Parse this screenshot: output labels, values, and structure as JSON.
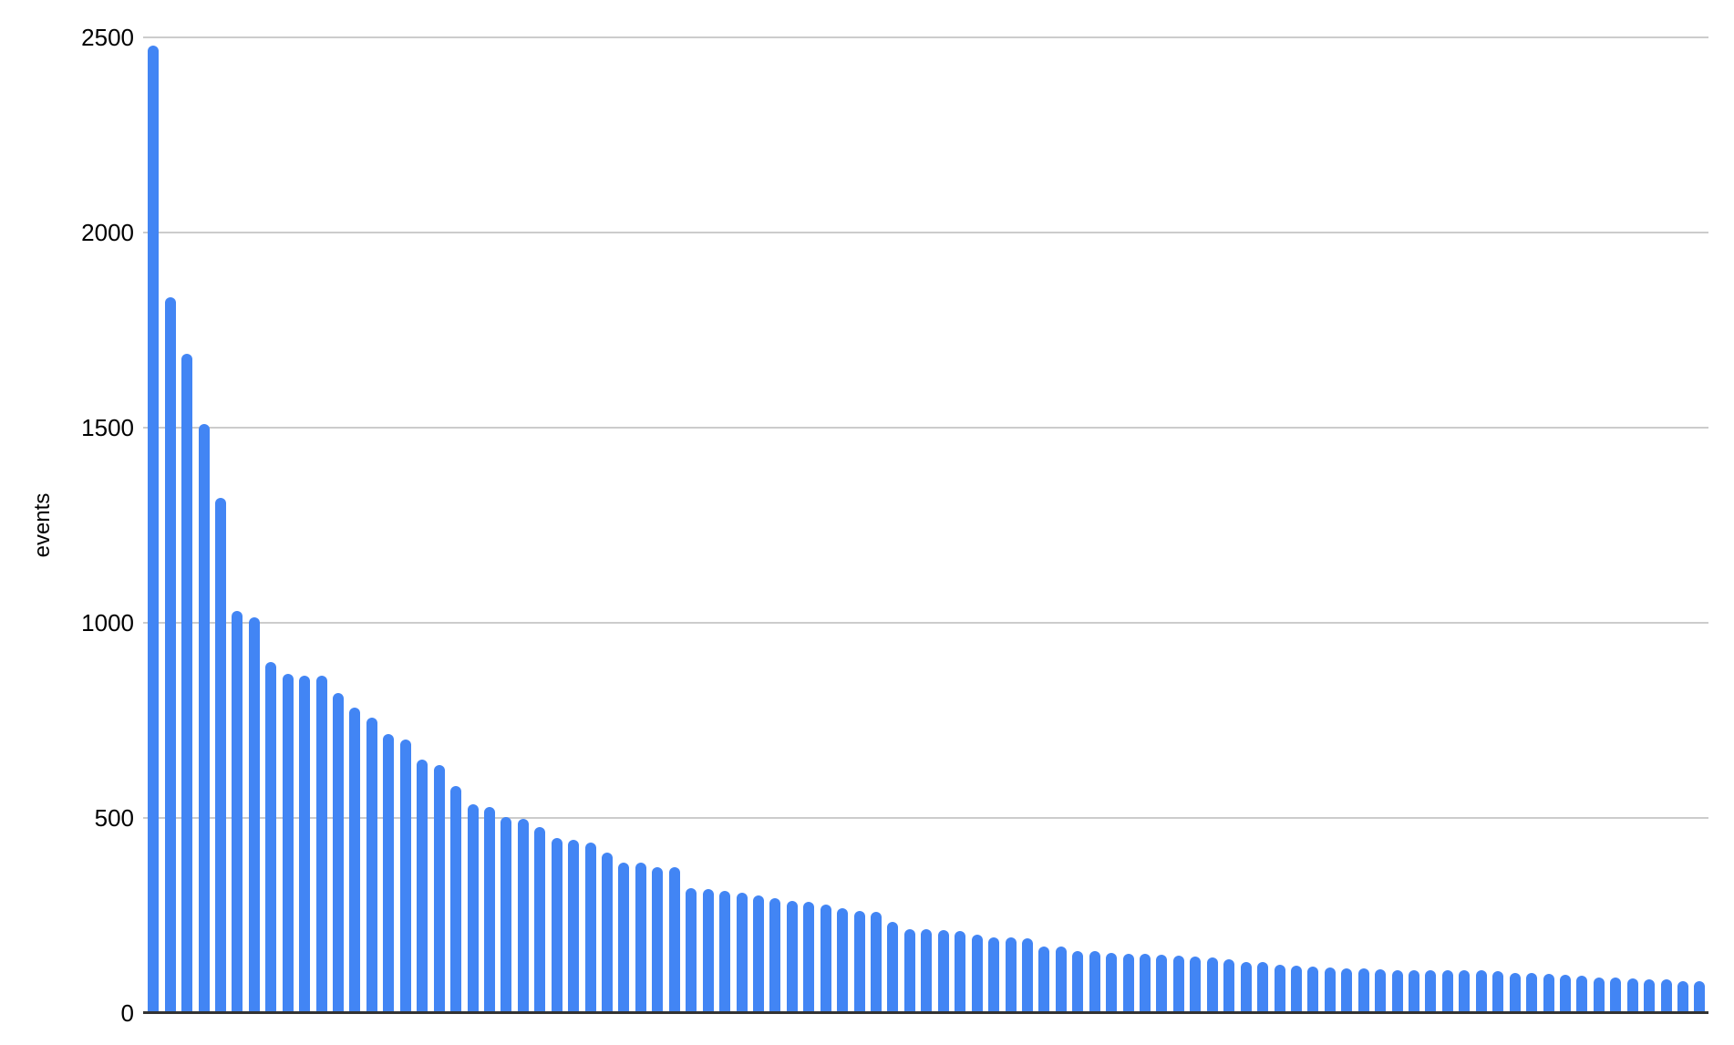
{
  "chart_data": {
    "type": "bar",
    "title": "",
    "xlabel": "",
    "ylabel": "events",
    "ylim": [
      0,
      2500
    ],
    "yticks": [
      0,
      500,
      1000,
      1500,
      2000,
      2500
    ],
    "ytick_labels": [
      "0",
      "500",
      "1000",
      "1500",
      "2000",
      "2500"
    ],
    "grid": true,
    "legend": false,
    "x_axis_labels_visible": false,
    "bar_count": 93,
    "values": [
      2480,
      1835,
      1690,
      1510,
      1320,
      1030,
      1015,
      900,
      870,
      865,
      865,
      820,
      782,
      757,
      715,
      700,
      650,
      635,
      582,
      534,
      528,
      502,
      498,
      477,
      449,
      444,
      438,
      412,
      386,
      385,
      375,
      373,
      321,
      317,
      313,
      309,
      301,
      294,
      287,
      285,
      278,
      268,
      261,
      259,
      234,
      216,
      215,
      212,
      210,
      202,
      195,
      193,
      191,
      171,
      170,
      160,
      158,
      155,
      153,
      151,
      150,
      147,
      146,
      143,
      138,
      132,
      130,
      125,
      122,
      120,
      118,
      114,
      114,
      112,
      111,
      111,
      110,
      109,
      109,
      109,
      108,
      104,
      104,
      101,
      99,
      95,
      91,
      91,
      89,
      86,
      86,
      83,
      83
    ],
    "colors": {
      "bar": "#4285f4",
      "gridline": "#cccccc",
      "axis_line": "#333333",
      "text": "#000000",
      "background": "#ffffff"
    }
  }
}
